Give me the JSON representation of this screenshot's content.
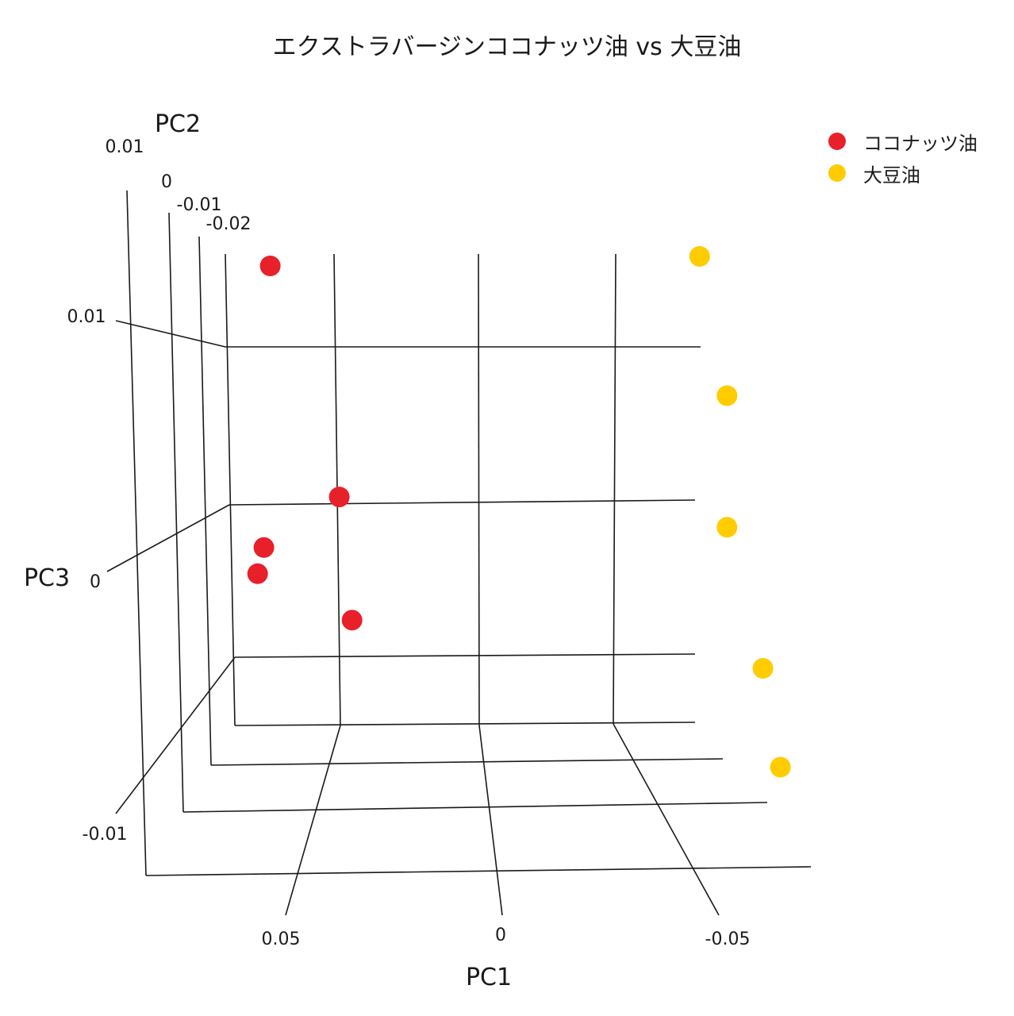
{
  "chart_data": {
    "type": "scatter",
    "subtype": "3d-scatter",
    "title": "エクストラバージンココナッツ油 vs 大豆油",
    "axes": {
      "x": {
        "label": "PC1",
        "ticks": [
          "0.05",
          "0",
          "-0.05"
        ]
      },
      "y": {
        "label": "PC2",
        "ticks": [
          "0.01",
          "0",
          "-0.01",
          "-0.02"
        ]
      },
      "z": {
        "label": "PC3",
        "ticks": [
          "0.01",
          "0",
          "-0.01"
        ]
      }
    },
    "grid": true,
    "legend_position": "top-right",
    "series": [
      {
        "name": "ココナッツ油",
        "color": "#e8202a",
        "points": [
          {
            "pc1": 0.08,
            "pc2": -0.012,
            "pc3": 0.014
          },
          {
            "pc1": 0.052,
            "pc2": -0.02,
            "pc3": 0.0003
          },
          {
            "pc1": 0.083,
            "pc2": -0.01,
            "pc3": -0.0045
          },
          {
            "pc1": 0.086,
            "pc2": -0.008,
            "pc3": -0.0065
          },
          {
            "pc1": 0.047,
            "pc2": -0.021,
            "pc3": -0.0075
          }
        ]
      },
      {
        "name": "大豆油",
        "color": "#ffcc00",
        "points": [
          {
            "pc1": -0.08,
            "pc2": -0.021,
            "pc3": 0.016
          },
          {
            "pc1": -0.09,
            "pc2": -0.021,
            "pc3": 0.007
          },
          {
            "pc1": -0.09,
            "pc2": -0.021,
            "pc3": -0.0015
          },
          {
            "pc1": -0.1,
            "pc2": -0.012,
            "pc3": -0.012
          },
          {
            "pc1": -0.105,
            "pc2": -0.008,
            "pc3": -0.019
          }
        ]
      }
    ]
  }
}
